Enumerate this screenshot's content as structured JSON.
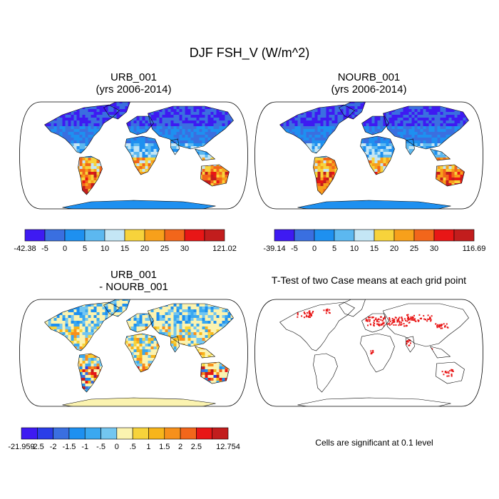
{
  "title": "DJF FSH_V (W/m^2)",
  "note": "Cells are significant at 0.1 level",
  "chart_data": [
    {
      "type": "heatmap",
      "title_line1": "URB_001",
      "title_line2": "(yrs 2006-2014)",
      "colorbar": {
        "labels": [
          "-42.38",
          "-5",
          "0",
          "5",
          "10",
          "15",
          "20",
          "25",
          "30",
          "121.02"
        ],
        "colors": [
          "#3e1af2",
          "#3a6fe0",
          "#1e90f0",
          "#5cb8f0",
          "#c4e6f5",
          "#f7d33b",
          "#f7a01b",
          "#f2661b",
          "#e81616",
          "#c21d1d"
        ]
      }
    },
    {
      "type": "heatmap",
      "title_line1": "NOURB_001",
      "title_line2": "(yrs 2006-2014)",
      "colorbar": {
        "labels": [
          "-39.14",
          "-5",
          "0",
          "5",
          "10",
          "15",
          "20",
          "25",
          "30",
          "116.69"
        ],
        "colors": [
          "#3e1af2",
          "#3a6fe0",
          "#1e90f0",
          "#5cb8f0",
          "#c4e6f5",
          "#f7d33b",
          "#f7a01b",
          "#f2661b",
          "#e81616",
          "#c21d1d"
        ]
      }
    },
    {
      "type": "heatmap",
      "title_line1": "URB_001",
      "title_line2": "- NOURB_001",
      "colorbar": {
        "labels": [
          "-21.959",
          "-2.5",
          "-2",
          "-1.5",
          "-1",
          "-.5",
          "0",
          ".5",
          "1",
          "1.5",
          "2",
          "2.5",
          "12.754"
        ],
        "colors": [
          "#3e1af2",
          "#2a3de8",
          "#3a6fe0",
          "#1e90f0",
          "#3aa8f0",
          "#73c6f0",
          "#fbf3b0",
          "#f7d33b",
          "#f7b51b",
          "#f7901b",
          "#f2661b",
          "#e81616",
          "#c21d1d"
        ]
      }
    },
    {
      "type": "heatmap",
      "title_line1": "T-Test of two Case means at each grid point",
      "title_line2": "",
      "significant_color": "#e81616"
    }
  ]
}
